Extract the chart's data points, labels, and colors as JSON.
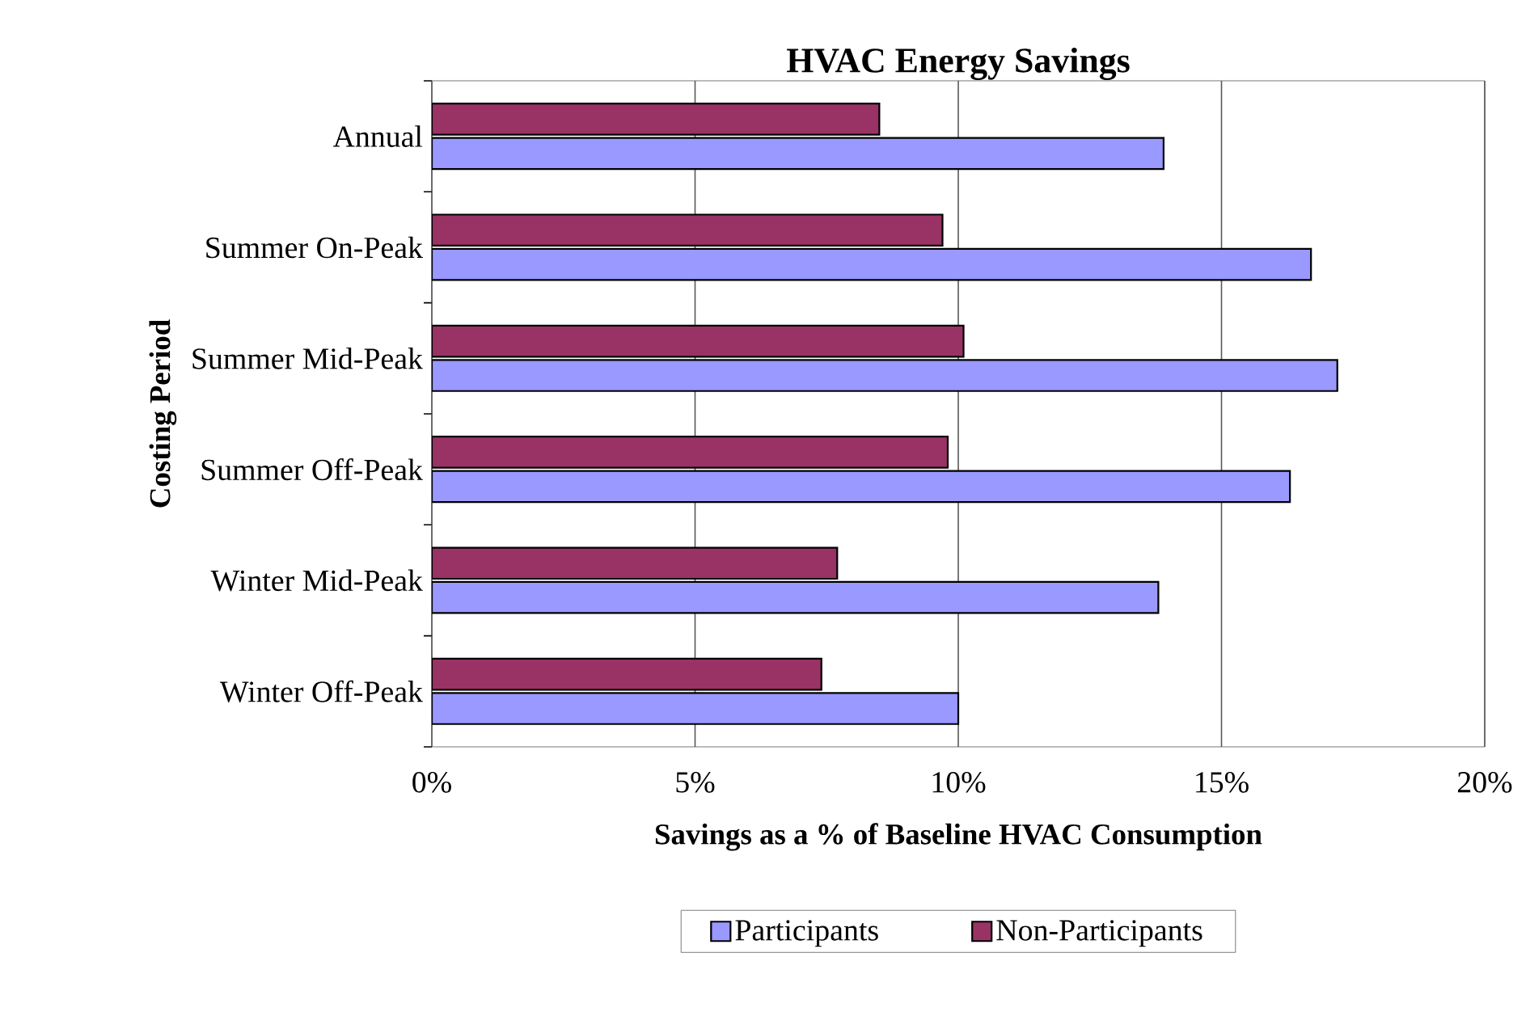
{
  "chart_data": {
    "type": "bar",
    "orientation": "horizontal",
    "title": "HVAC Energy Savings",
    "xlabel": "Savings as a % of Baseline HVAC Consumption",
    "ylabel": "Costing Period",
    "categories": [
      "Annual",
      "Summer On-Peak",
      "Summer Mid-Peak",
      "Summer Off-Peak",
      "Winter Mid-Peak",
      "Winter Off-Peak"
    ],
    "series": [
      {
        "name": "Participants",
        "color": "#9999ff",
        "values": [
          13.9,
          16.7,
          17.2,
          16.3,
          13.8,
          10.0
        ]
      },
      {
        "name": "Non-Participants",
        "color": "#993366",
        "values": [
          8.5,
          9.7,
          10.1,
          9.8,
          7.7,
          7.4
        ]
      }
    ],
    "xlim": [
      0,
      20
    ],
    "xticks": [
      {
        "value": 0,
        "label": "0%"
      },
      {
        "value": 5,
        "label": "5%"
      },
      {
        "value": 10,
        "label": "10%"
      },
      {
        "value": 15,
        "label": "15%"
      },
      {
        "value": 20,
        "label": "20%"
      }
    ],
    "grid": "x",
    "legend": "bottom"
  }
}
